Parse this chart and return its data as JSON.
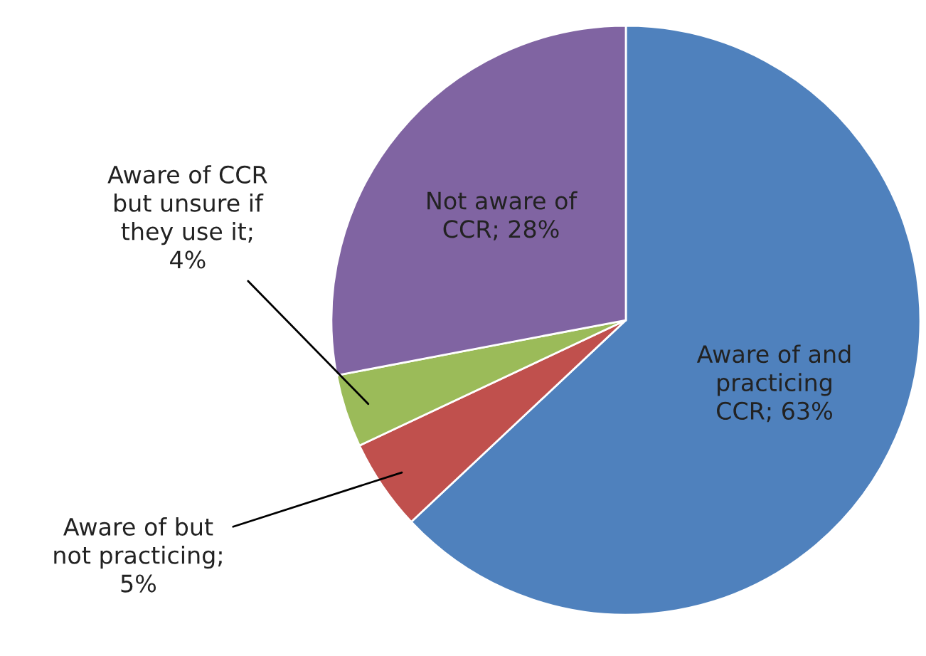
{
  "chart_data": {
    "type": "pie",
    "categories": [
      "Aware of and\npracticing\nCCR; 63%",
      "Aware of but\nnot practicing;\n5%",
      "Aware of CCR\nbut unsure if\nthey use it;\n4%",
      "Not aware of\nCCR; 28%"
    ],
    "values": [
      63,
      5,
      4,
      28
    ],
    "colors": [
      "#4f81bd",
      "#c0504d",
      "#9bbb59",
      "#8064a2"
    ]
  }
}
